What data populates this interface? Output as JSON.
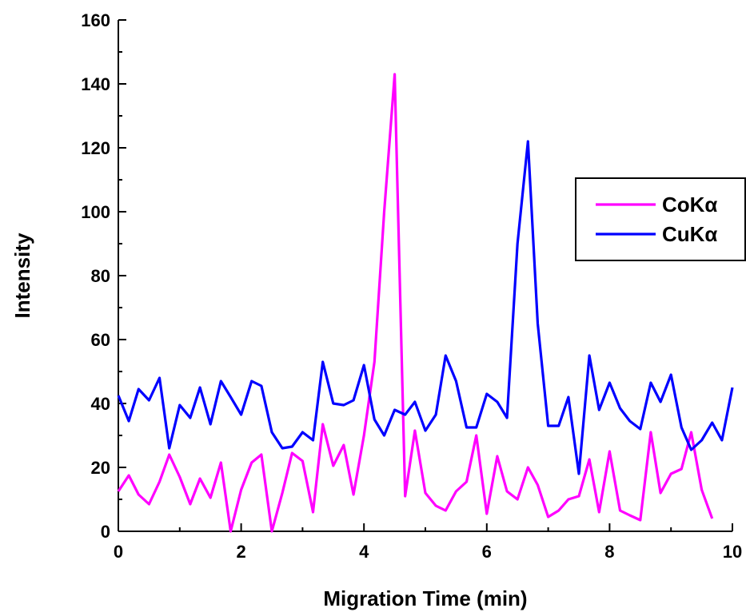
{
  "chart_data": {
    "type": "line",
    "title": "",
    "xlabel": "Migration Time (min)",
    "ylabel": "Intensity",
    "xlim": [
      0,
      10
    ],
    "ylim": [
      0,
      160
    ],
    "xticks": [
      0,
      2,
      4,
      6,
      8,
      10
    ],
    "xtick_labels": [
      "0",
      "2",
      "4",
      "6",
      "8",
      "10"
    ],
    "yticks": [
      0,
      20,
      40,
      60,
      80,
      100,
      120,
      140,
      160
    ],
    "ytick_labels": [
      "0",
      "20",
      "40",
      "60",
      "80",
      "100",
      "120",
      "140",
      "160"
    ],
    "grid": false,
    "legend_position": "right",
    "series": [
      {
        "name": "CoKα",
        "color": "#ff00ff",
        "x": [
          0,
          0.17,
          0.33,
          0.5,
          0.67,
          0.83,
          1.0,
          1.17,
          1.33,
          1.5,
          1.67,
          1.83,
          2.0,
          2.17,
          2.33,
          2.5,
          2.67,
          2.83,
          3.0,
          3.17,
          3.33,
          3.5,
          3.67,
          3.83,
          4.0,
          4.17,
          4.33,
          4.5,
          4.67,
          4.83,
          5.0,
          5.17,
          5.33,
          5.5,
          5.67,
          5.83,
          6.0,
          6.17,
          6.33,
          6.5,
          6.67,
          6.83,
          7.0,
          7.17,
          7.33,
          7.5,
          7.67,
          7.83,
          8.0,
          8.17,
          8.33,
          8.5,
          8.67,
          8.83,
          9.0,
          9.17,
          9.33,
          9.5,
          9.67
        ],
        "values": [
          12.5,
          17.5,
          11.5,
          8.5,
          15.5,
          24,
          17,
          8.5,
          16.5,
          10.5,
          21.5,
          0,
          13,
          21.5,
          24,
          0,
          12,
          24.5,
          22,
          6,
          33.5,
          20.5,
          27,
          11.5,
          30,
          53,
          100,
          143,
          11,
          31.5,
          12,
          8,
          6.5,
          12.5,
          15.5,
          30,
          5.5,
          23.5,
          12.5,
          10,
          20,
          14.5,
          4.5,
          6.5,
          10,
          11,
          22.5,
          6,
          25,
          6.5,
          5,
          3.5,
          31,
          12,
          18,
          19.5,
          31,
          13,
          4
        ]
      },
      {
        "name": "CuKα",
        "color": "#0000ff",
        "x": [
          0,
          0.17,
          0.33,
          0.5,
          0.67,
          0.83,
          1.0,
          1.17,
          1.33,
          1.5,
          1.67,
          1.83,
          2.0,
          2.17,
          2.33,
          2.5,
          2.67,
          2.83,
          3.0,
          3.17,
          3.33,
          3.5,
          3.67,
          3.83,
          4.0,
          4.17,
          4.33,
          4.5,
          4.67,
          4.83,
          5.0,
          5.17,
          5.33,
          5.5,
          5.67,
          5.83,
          6.0,
          6.17,
          6.33,
          6.5,
          6.67,
          6.83,
          7.0,
          7.17,
          7.33,
          7.5,
          7.67,
          7.83,
          8.0,
          8.17,
          8.33,
          8.5,
          8.67,
          8.83,
          9.0,
          9.17,
          9.33,
          9.5,
          9.67,
          9.83,
          10.0
        ],
        "values": [
          42.5,
          34.5,
          44.5,
          41,
          48,
          26,
          39.5,
          35.5,
          45,
          33.5,
          47,
          42,
          36.5,
          47,
          45.5,
          31,
          26,
          26.5,
          31,
          28.5,
          53,
          40,
          39.5,
          41,
          52,
          35,
          30,
          38,
          36.5,
          40.5,
          31.5,
          36.5,
          55,
          47,
          32.5,
          32.5,
          43,
          40.5,
          35.5,
          90,
          122,
          65,
          33,
          33,
          42,
          18,
          55,
          38,
          46.5,
          38.5,
          34.5,
          32,
          46.5,
          40.5,
          49,
          32.5,
          25.5,
          28.5,
          34,
          28.5,
          45
        ]
      }
    ]
  }
}
